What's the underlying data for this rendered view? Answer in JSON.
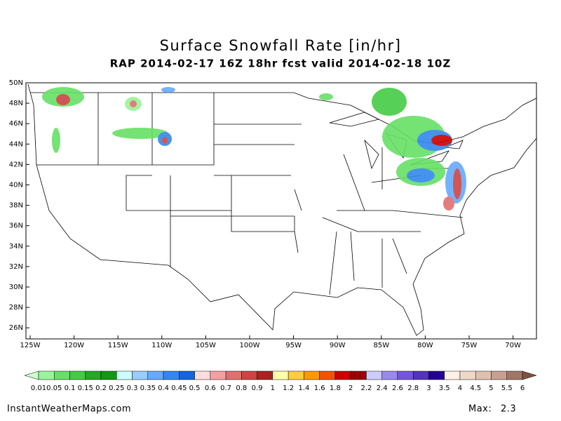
{
  "header": {
    "title": "Surface Snowfall Rate [in/hr]",
    "subtitle": "RAP 2014-02-17 16Z 18hr fcst valid 2014-02-18 10Z"
  },
  "map": {
    "lat_labels": [
      "50N",
      "48N",
      "46N",
      "44N",
      "42N",
      "40N",
      "38N",
      "36N",
      "34N",
      "32N",
      "30N",
      "28N",
      "26N"
    ],
    "lon_labels": [
      "125W",
      "120W",
      "115W",
      "110W",
      "105W",
      "100W",
      "95W",
      "90W",
      "85W",
      "80W",
      "75W",
      "70W"
    ]
  },
  "colorbar": {
    "labels": [
      "0.01",
      "0.05",
      "0.1",
      "0.15",
      "0.2",
      "0.25",
      "0.3",
      "0.35",
      "0.4",
      "0.45",
      "0.5",
      "0.6",
      "0.7",
      "0.8",
      "0.9",
      "1",
      "1.2",
      "1.4",
      "1.6",
      "1.8",
      "2",
      "2.2",
      "2.4",
      "2.6",
      "2.8",
      "3",
      "3.5",
      "4",
      "4.5",
      "5",
      "5.5",
      "6"
    ],
    "colors": [
      "#ccffcc",
      "#99f599",
      "#66e066",
      "#44cc44",
      "#22aa22",
      "#119911",
      "#ccffff",
      "#99ccff",
      "#66aaff",
      "#3388ee",
      "#1166dd",
      "#ffdddd",
      "#f5a0a0",
      "#e07070",
      "#cc4444",
      "#aa2222",
      "#ffffaa",
      "#ffcc44",
      "#ff9900",
      "#ee5500",
      "#cc0000",
      "#990000",
      "#ccccff",
      "#9988ee",
      "#7755dd",
      "#5533bb",
      "#220099",
      "#fff0e8",
      "#f0d8c8",
      "#e0c0b0",
      "#c8a090",
      "#a07868",
      "#805040"
    ]
  },
  "footer": {
    "site": "InstantWeatherMaps.com",
    "max_label": "Max:",
    "max_value": 2.3
  }
}
